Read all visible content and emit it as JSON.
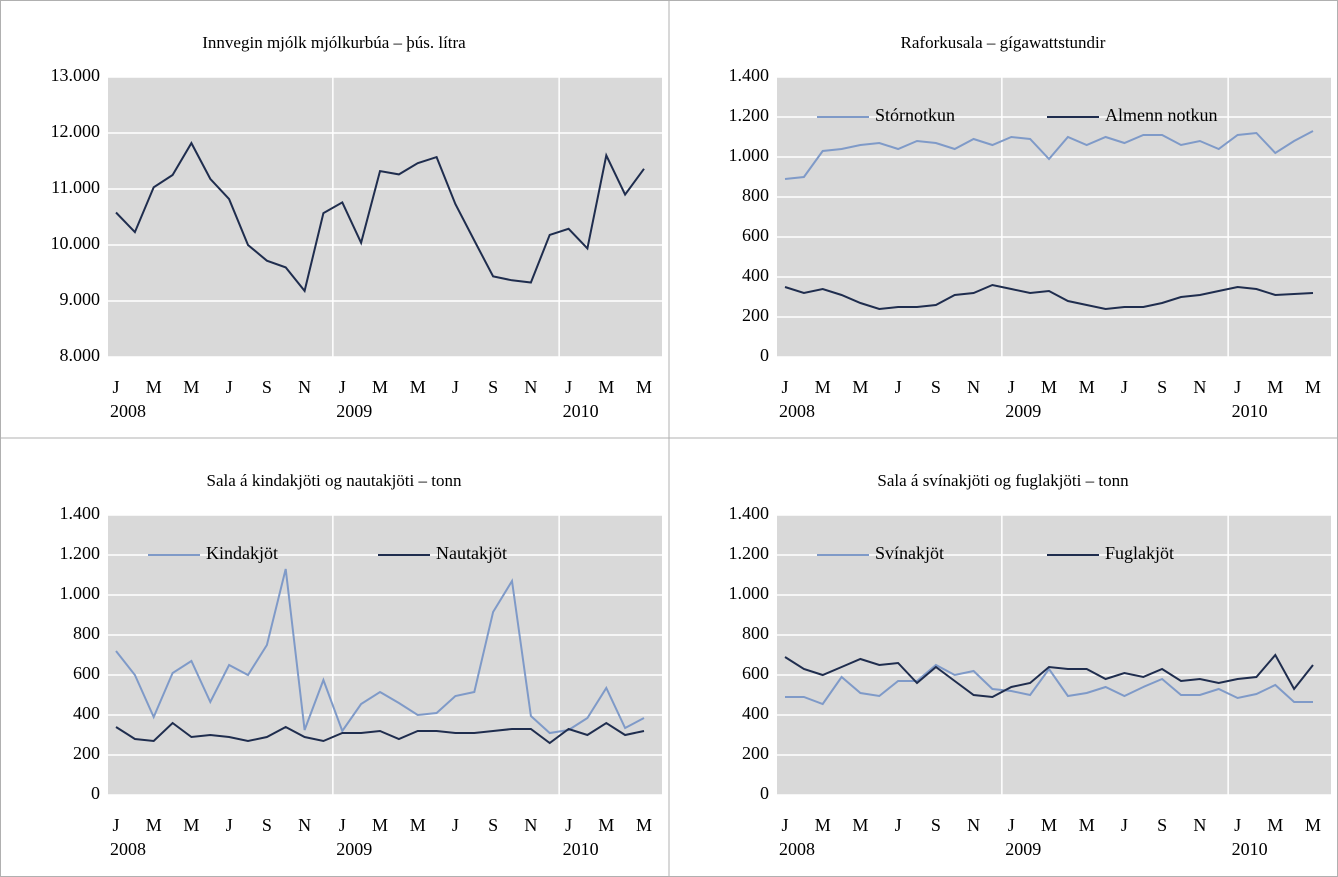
{
  "chart_data": [
    {
      "type": "line",
      "title": "Innvegin mjólk mjólkurbúa – þús. lítra",
      "categories": [
        "J",
        null,
        "M",
        null,
        "M",
        null,
        "J",
        null,
        "S",
        null,
        "N",
        null,
        "J",
        null,
        "M",
        null,
        "M",
        null,
        "J",
        null,
        "S",
        null,
        "N",
        null,
        "J",
        null,
        "M",
        null,
        "M"
      ],
      "years": [
        "2008",
        null,
        null,
        null,
        null,
        null,
        null,
        null,
        null,
        null,
        null,
        null,
        "2009",
        null,
        null,
        null,
        null,
        null,
        null,
        null,
        null,
        null,
        null,
        null,
        "2010",
        null,
        null,
        null,
        null
      ],
      "series": [
        {
          "color": "#1f2d4e",
          "values": [
            10580,
            10230,
            11030,
            11250,
            11820,
            11180,
            10820,
            10000,
            9720,
            9600,
            9180,
            10570,
            10760,
            10040,
            11320,
            11260,
            11460,
            11570,
            10730,
            10080,
            9440,
            9370,
            9330,
            10180,
            10290,
            9940,
            11600,
            10900,
            11360
          ]
        }
      ],
      "ylim": [
        8000,
        13000
      ],
      "yticks": [
        {
          "value": 8000,
          "label": "8.000"
        },
        {
          "value": 9000,
          "label": "9.000"
        },
        {
          "value": 10000,
          "label": "10.000"
        },
        {
          "value": 11000,
          "label": "11.000"
        },
        {
          "value": 12000,
          "label": "12.000"
        },
        {
          "value": 13000,
          "label": "13.000"
        }
      ],
      "grid": true
    },
    {
      "type": "line",
      "title": "Raforkusala – gígawattstundir",
      "categories": [
        "J",
        null,
        "M",
        null,
        "M",
        null,
        "J",
        null,
        "S",
        null,
        "N",
        null,
        "J",
        null,
        "M",
        null,
        "M",
        null,
        "J",
        null,
        "S",
        null,
        "N",
        null,
        "J",
        null,
        "M",
        null,
        "M"
      ],
      "years": [
        "2008",
        null,
        null,
        null,
        null,
        null,
        null,
        null,
        null,
        null,
        null,
        null,
        "2009",
        null,
        null,
        null,
        null,
        null,
        null,
        null,
        null,
        null,
        null,
        null,
        "2010",
        null,
        null,
        null,
        null
      ],
      "series": [
        {
          "name": "Stórnotkun",
          "color": "#7f9ac8",
          "values": [
            890,
            900,
            1030,
            1040,
            1060,
            1070,
            1040,
            1080,
            1070,
            1040,
            1090,
            1060,
            1100,
            1090,
            990,
            1100,
            1060,
            1100,
            1070,
            1110,
            1110,
            1060,
            1080,
            1040,
            1110,
            1120,
            1020,
            1080,
            1130
          ]
        },
        {
          "name": "Almenn notkun",
          "color": "#1f2d4e",
          "values": [
            350,
            320,
            340,
            310,
            270,
            240,
            250,
            250,
            260,
            310,
            320,
            360,
            340,
            320,
            330,
            280,
            260,
            240,
            250,
            250,
            270,
            300,
            310,
            330,
            350,
            340,
            310,
            315,
            320
          ]
        }
      ],
      "ylim": [
        0,
        1400
      ],
      "yticks": [
        0,
        200,
        400,
        600,
        800,
        {
          "value": 1000,
          "label": "1.000"
        },
        {
          "value": 1200,
          "label": "1.200"
        },
        {
          "value": 1400,
          "label": "1.400"
        }
      ],
      "grid": true,
      "legend": "top"
    },
    {
      "type": "line",
      "title": "Sala á kindakjöti og nautakjöti – tonn",
      "categories": [
        "J",
        null,
        "M",
        null,
        "M",
        null,
        "J",
        null,
        "S",
        null,
        "N",
        null,
        "J",
        null,
        "M",
        null,
        "M",
        null,
        "J",
        null,
        "S",
        null,
        "N",
        null,
        "J",
        null,
        "M",
        null,
        "M"
      ],
      "years": [
        "2008",
        null,
        null,
        null,
        null,
        null,
        null,
        null,
        null,
        null,
        null,
        null,
        "2009",
        null,
        null,
        null,
        null,
        null,
        null,
        null,
        null,
        null,
        null,
        null,
        "2010",
        null,
        null,
        null,
        null
      ],
      "series": [
        {
          "name": "Kindakjöt",
          "color": "#7f9ac8",
          "values": [
            720,
            600,
            390,
            610,
            670,
            465,
            650,
            600,
            750,
            1130,
            325,
            575,
            320,
            455,
            515,
            460,
            400,
            410,
            495,
            515,
            915,
            1070,
            395,
            310,
            325,
            385,
            535,
            335,
            385
          ]
        },
        {
          "name": "Nautakjöt",
          "color": "#1f2d4e",
          "values": [
            340,
            280,
            270,
            360,
            290,
            300,
            290,
            270,
            290,
            340,
            290,
            270,
            310,
            310,
            320,
            280,
            320,
            320,
            310,
            310,
            320,
            330,
            330,
            260,
            330,
            300,
            360,
            300,
            320
          ]
        }
      ],
      "ylim": [
        0,
        1400
      ],
      "yticks": [
        0,
        200,
        400,
        600,
        800,
        {
          "value": 1000,
          "label": "1.000"
        },
        {
          "value": 1200,
          "label": "1.200"
        },
        {
          "value": 1400,
          "label": "1.400"
        }
      ],
      "grid": true,
      "legend": "top"
    },
    {
      "type": "line",
      "title": "Sala á svínakjöti og fuglakjöti – tonn",
      "categories": [
        "J",
        null,
        "M",
        null,
        "M",
        null,
        "J",
        null,
        "S",
        null,
        "N",
        null,
        "J",
        null,
        "M",
        null,
        "M",
        null,
        "J",
        null,
        "S",
        null,
        "N",
        null,
        "J",
        null,
        "M",
        null,
        "M"
      ],
      "years": [
        "2008",
        null,
        null,
        null,
        null,
        null,
        null,
        null,
        null,
        null,
        null,
        null,
        "2009",
        null,
        null,
        null,
        null,
        null,
        null,
        null,
        null,
        null,
        null,
        null,
        "2010",
        null,
        null,
        null,
        null
      ],
      "series": [
        {
          "name": "Svínakjöt",
          "color": "#7f9ac8",
          "values": [
            490,
            490,
            455,
            590,
            510,
            495,
            570,
            570,
            650,
            600,
            620,
            530,
            520,
            500,
            630,
            495,
            510,
            540,
            495,
            540,
            580,
            500,
            500,
            530,
            485,
            505,
            550,
            465,
            465
          ]
        },
        {
          "name": "Fuglakjöt",
          "color": "#1f2d4e",
          "values": [
            690,
            630,
            600,
            640,
            680,
            650,
            660,
            560,
            640,
            570,
            500,
            490,
            540,
            560,
            640,
            630,
            630,
            580,
            610,
            590,
            630,
            570,
            580,
            560,
            580,
            590,
            700,
            530,
            650
          ]
        }
      ],
      "ylim": [
        0,
        1400
      ],
      "yticks": [
        0,
        200,
        400,
        600,
        800,
        {
          "value": 1000,
          "label": "1.000"
        },
        {
          "value": 1200,
          "label": "1.200"
        },
        {
          "value": 1400,
          "label": "1.400"
        }
      ],
      "grid": true,
      "legend": "top"
    }
  ]
}
